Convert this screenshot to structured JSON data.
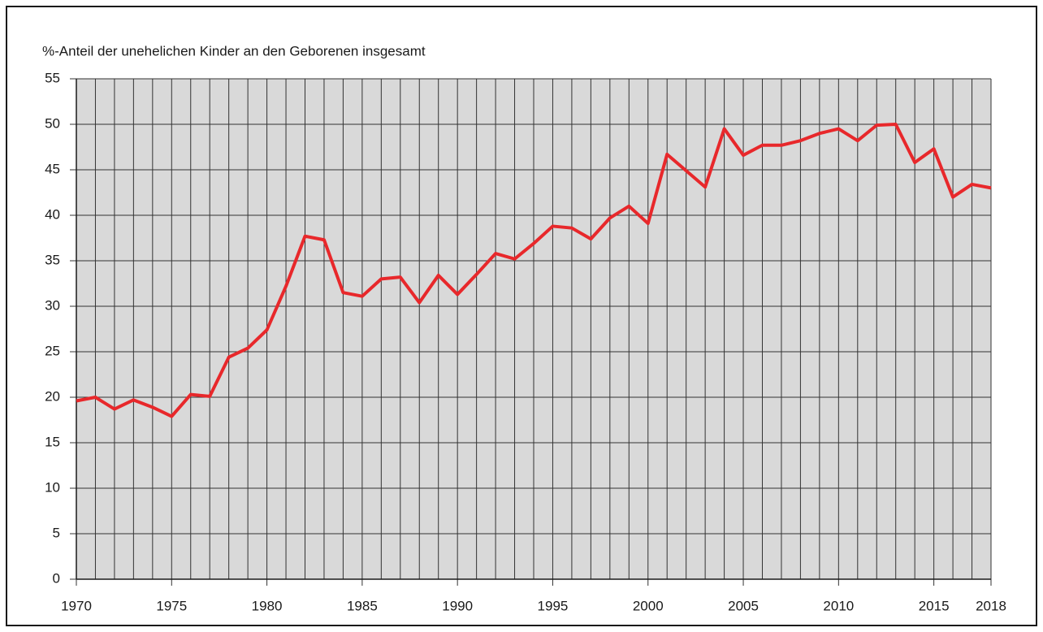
{
  "chart_data": {
    "type": "line",
    "y_axis_label": "%-Anteil der unehelichen Kinder an den Geborenen insgesamt",
    "x": [
      1970,
      1971,
      1972,
      1973,
      1974,
      1975,
      1976,
      1977,
      1978,
      1979,
      1980,
      1981,
      1982,
      1983,
      1984,
      1985,
      1986,
      1987,
      1988,
      1989,
      1990,
      1991,
      1992,
      1993,
      1994,
      1995,
      1996,
      1997,
      1998,
      1999,
      2000,
      2001,
      2002,
      2003,
      2004,
      2005,
      2006,
      2007,
      2008,
      2009,
      2010,
      2011,
      2012,
      2013,
      2014,
      2015,
      2016,
      2017,
      2018
    ],
    "series": [
      {
        "color": "#e8282b",
        "values": [
          19.6,
          20.0,
          18.7,
          19.7,
          18.9,
          17.9,
          20.3,
          20.1,
          24.4,
          25.4,
          27.4,
          32.2,
          37.7,
          37.3,
          31.5,
          31.1,
          33.0,
          33.2,
          30.4,
          33.4,
          31.3,
          33.5,
          35.8,
          35.2,
          36.9,
          38.8,
          38.6,
          37.4,
          39.7,
          41.0,
          39.1,
          46.7,
          44.9,
          43.1,
          49.5,
          46.6,
          47.7,
          47.7,
          48.2,
          49.0,
          49.5,
          48.2,
          49.9,
          50.0,
          45.8,
          47.3,
          42.0,
          43.4,
          43.0
        ]
      }
    ],
    "xlim": [
      1970,
      2018
    ],
    "xticks": [
      1970,
      1975,
      1980,
      1985,
      1990,
      1995,
      2000,
      2005,
      2010,
      2015,
      2018
    ],
    "ylim": [
      0,
      55
    ],
    "yticks": [
      0,
      5,
      10,
      15,
      20,
      25,
      30,
      35,
      40,
      45,
      50,
      55
    ],
    "grid": true,
    "background": "#d9d9d9"
  }
}
